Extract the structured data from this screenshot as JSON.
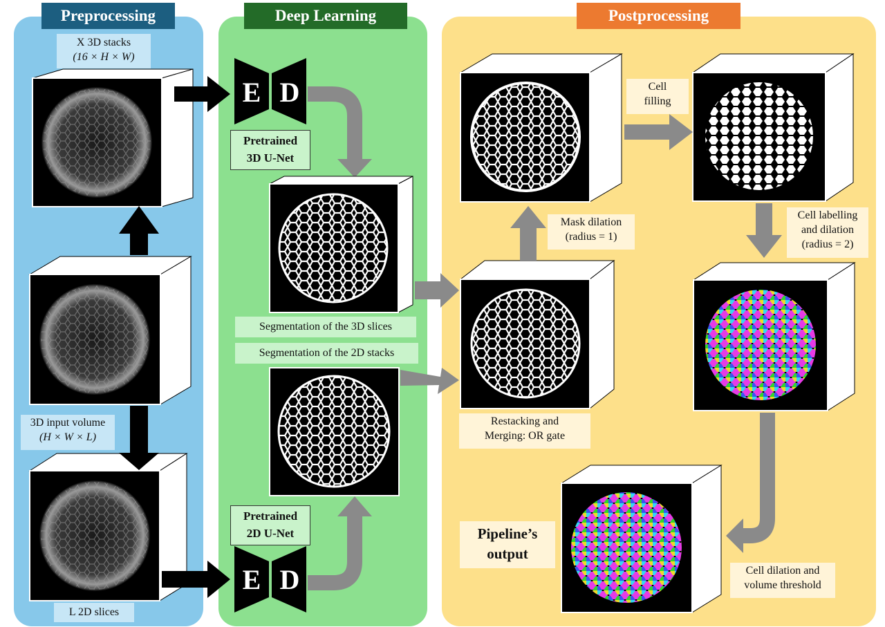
{
  "panels": {
    "preprocessing": "Preprocessing",
    "deep_learning": "Deep Learning",
    "postprocessing": "Postprocessing"
  },
  "preprocessing": {
    "stacks_label_line1": "X 3D stacks",
    "stacks_label_line2": "(16 × H × W)",
    "input_label_line1": "3D input volume",
    "input_label_line2": "(H × W × L)",
    "slices_label": "L 2D slices"
  },
  "deep_learning": {
    "encoder_letter": "E",
    "decoder_letter": "D",
    "unet3d_line1": "Pretrained",
    "unet3d_line2": "3D U-Net",
    "unet2d_line1": "Pretrained",
    "unet2d_line2": "2D U-Net",
    "seg3d_label": "Segmentation of the 3D slices",
    "seg2d_label": "Segmentation of the 2D stacks"
  },
  "postprocessing": {
    "restack_line1": "Restacking and",
    "restack_line2": "Merging: OR gate",
    "mask_dilation_line1": "Mask dilation",
    "mask_dilation_line2": "(radius = 1)",
    "cell_filling_line1": "Cell",
    "cell_filling_line2": "filling",
    "labelling_line1": "Cell labelling",
    "labelling_line2": "and dilation",
    "labelling_line3": "(radius = 2)",
    "volume_line1": "Cell dilation and",
    "volume_line2": "volume threshold",
    "output_line1": "Pipeline’s",
    "output_line2": "output"
  },
  "colors": {
    "pre_bg": "#87c8ea",
    "pre_title": "#1c5e80",
    "dl_bg": "#8ce08f",
    "dl_title": "#236b28",
    "post_bg": "#fde08a",
    "post_title": "#ec7a30",
    "arrow_black": "#000000",
    "arrow_gray": "#8a8a8a"
  }
}
